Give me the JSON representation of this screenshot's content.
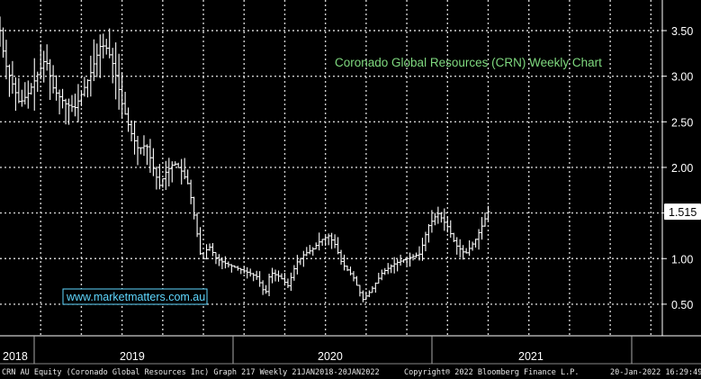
{
  "chart_data": {
    "type": "ohlc",
    "title": "Coronado Global Resources (CRN) Weekly Chart",
    "watermark": "www.marketmatters.com.au",
    "ylim": [
      0.3,
      3.7
    ],
    "yticks": [
      3.5,
      3.0,
      2.5,
      2.0,
      1.5,
      1.0,
      0.5
    ],
    "ytick_labels": [
      "3.50",
      "3.00",
      "2.50",
      "2.00",
      "1.50",
      "1.00",
      "0.50"
    ],
    "x_dividers": [
      2018.0,
      2019.0,
      2020.0,
      2021.0,
      2022.0
    ],
    "x_range": [
      2018.0,
      2022.07
    ],
    "year_labels": [
      {
        "label": "2018",
        "x": 2018.0
      },
      {
        "label": "2019",
        "x": 2018.5
      },
      {
        "label": "2020",
        "x": 2019.5
      },
      {
        "label": "2021",
        "x": 2020.5
      }
    ],
    "last_price": 1.515,
    "last_price_label": "1.515",
    "close_path": [
      [
        2018.0,
        3.5
      ],
      [
        2018.03,
        3.15
      ],
      [
        2018.07,
        2.95
      ],
      [
        2018.12,
        2.7
      ],
      [
        2018.17,
        2.8
      ],
      [
        2018.24,
        3.05
      ],
      [
        2018.28,
        3.2
      ],
      [
        2018.33,
        2.85
      ],
      [
        2018.4,
        2.7
      ],
      [
        2018.46,
        2.65
      ],
      [
        2018.5,
        2.8
      ],
      [
        2018.55,
        3.0
      ],
      [
        2018.62,
        3.35
      ],
      [
        2018.66,
        3.3
      ],
      [
        2018.7,
        3.1
      ],
      [
        2018.75,
        2.7
      ],
      [
        2018.8,
        2.4
      ],
      [
        2018.85,
        2.2
      ],
      [
        2018.9,
        2.25
      ],
      [
        2018.94,
        2.0
      ],
      [
        2018.98,
        1.8
      ],
      [
        2019.02,
        1.95
      ],
      [
        2019.07,
        2.05
      ],
      [
        2019.12,
        1.95
      ],
      [
        2019.16,
        1.8
      ],
      [
        2019.2,
        1.4
      ],
      [
        2019.24,
        0.95
      ],
      [
        2019.28,
        1.15
      ],
      [
        2019.33,
        1.0
      ],
      [
        2019.38,
        0.95
      ],
      [
        2019.45,
        0.9
      ],
      [
        2019.52,
        0.85
      ],
      [
        2019.58,
        0.8
      ],
      [
        2019.63,
        0.6
      ],
      [
        2019.66,
        0.85
      ],
      [
        2019.72,
        0.8
      ],
      [
        2019.77,
        0.7
      ],
      [
        2019.82,
        0.95
      ],
      [
        2019.87,
        1.05
      ],
      [
        2019.92,
        1.1
      ],
      [
        2019.97,
        1.2
      ],
      [
        2020.02,
        1.25
      ],
      [
        2020.06,
        1.15
      ],
      [
        2020.1,
        0.95
      ],
      [
        2020.17,
        0.8
      ],
      [
        2020.23,
        0.55
      ],
      [
        2020.28,
        0.65
      ],
      [
        2020.35,
        0.85
      ],
      [
        2020.43,
        0.95
      ],
      [
        2020.5,
        1.0
      ],
      [
        2020.58,
        1.05
      ],
      [
        2020.63,
        1.35
      ],
      [
        2020.69,
        1.5
      ],
      [
        2020.75,
        1.35
      ],
      [
        2020.8,
        1.15
      ],
      [
        2020.86,
        1.05
      ],
      [
        2020.92,
        1.2
      ],
      [
        2020.96,
        1.35
      ],
      [
        2021.0,
        1.515
      ]
    ]
  },
  "footer": {
    "left": "CRN AU Equity (Coronado Global Resources Inc) Graph 217  Weekly 21JAN2018-20JAN2022",
    "center": "Copyright® 2022 Bloomberg Finance L.P.",
    "right": "20-Jan-2022 16:29:49"
  },
  "colors": {
    "background": "#000000",
    "price_line": "#ffffff",
    "grid": "#cfcfcf",
    "title": "#7fd97f",
    "watermark_text": "#5fd7ff",
    "watermark_border": "#5fd7ff"
  }
}
